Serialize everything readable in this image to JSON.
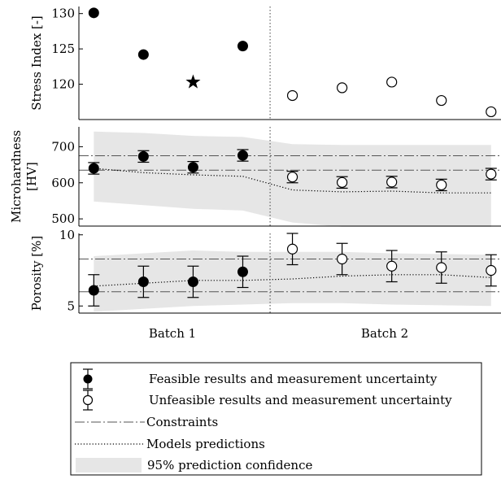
{
  "chart_data": [
    {
      "type": "scatter",
      "ylabel": "Stress Index [-]",
      "yticks": [
        120,
        125,
        130
      ],
      "ylim": [
        115,
        131
      ],
      "series": [
        {
          "group": "feasible",
          "marker": "filled-circle",
          "x": [
            1,
            2,
            4
          ],
          "y": [
            130.1,
            124.2,
            125.4
          ]
        },
        {
          "group": "star",
          "marker": "star",
          "x": [
            3
          ],
          "y": [
            120.3
          ]
        },
        {
          "group": "unfeasible",
          "marker": "open-circle",
          "x": [
            5,
            6,
            7,
            8,
            9
          ],
          "y": [
            118.4,
            119.5,
            120.3,
            117.7,
            116.1
          ]
        }
      ]
    },
    {
      "type": "scatter",
      "ylabel": "Microhardness [HV]",
      "yticks": [
        500,
        600,
        700
      ],
      "ylim": [
        480,
        755
      ],
      "constraints": [
        635,
        675
      ],
      "band": {
        "x": [
          1,
          2,
          3,
          4,
          5,
          6,
          7,
          8,
          9
        ],
        "lower": [
          548,
          538,
          528,
          523,
          490,
          478,
          478,
          478,
          478
        ],
        "upper": [
          742,
          738,
          730,
          727,
          707,
          705,
          705,
          705,
          705
        ]
      },
      "model": {
        "x": [
          1,
          2,
          3,
          4,
          5,
          6,
          7,
          8,
          9
        ],
        "y": [
          640,
          628,
          622,
          618,
          580,
          575,
          577,
          572,
          572
        ]
      },
      "series": [
        {
          "group": "feasible",
          "x": [
            1,
            2,
            3,
            4
          ],
          "y": [
            640,
            673,
            643,
            676
          ],
          "err": [
            16,
            16,
            16,
            16
          ]
        },
        {
          "group": "unfeasible",
          "x": [
            5,
            6,
            7,
            8,
            9
          ],
          "y": [
            616,
            601,
            602,
            594,
            624
          ],
          "err": [
            16,
            16,
            16,
            16,
            16
          ]
        }
      ]
    },
    {
      "type": "scatter",
      "ylabel": "Porosity [%]",
      "yticks": [
        5,
        10
      ],
      "ylim": [
        4.5,
        10.1
      ],
      "constraints": [
        6.0,
        8.3
      ],
      "band": {
        "x": [
          1,
          2,
          3,
          4,
          5,
          6,
          7,
          8,
          9
        ],
        "lower": [
          4.6,
          4.8,
          5.0,
          5.1,
          5.2,
          5.2,
          5.1,
          5.05,
          5.0
        ],
        "upper": [
          8.5,
          8.7,
          8.9,
          8.8,
          8.8,
          8.8,
          8.7,
          8.65,
          8.6
        ]
      },
      "model": {
        "x": [
          1,
          2,
          3,
          4,
          5,
          6,
          7,
          8,
          9
        ],
        "y": [
          6.4,
          6.6,
          6.8,
          6.8,
          6.9,
          7.1,
          7.2,
          7.2,
          7.0
        ]
      },
      "series": [
        {
          "group": "feasible",
          "x": [
            1,
            2,
            3,
            4
          ],
          "y": [
            6.1,
            6.7,
            6.7,
            7.4
          ],
          "err": [
            1.1,
            1.1,
            1.1,
            1.1
          ]
        },
        {
          "group": "unfeasible",
          "x": [
            5,
            6,
            7,
            8,
            9
          ],
          "y": [
            9.0,
            8.3,
            7.8,
            7.7,
            7.5
          ],
          "err": [
            1.1,
            1.1,
            1.1,
            1.1,
            1.1
          ]
        }
      ]
    }
  ],
  "xaxis": {
    "categories": [
      "Batch 1",
      "Batch 2"
    ],
    "separator_x": 4.55,
    "xlim": [
      0.7,
      9.2
    ]
  },
  "legend": {
    "items": [
      {
        "key": "feasible",
        "label": "Feasible results and measurement uncertainty"
      },
      {
        "key": "unfeasible",
        "label": "Unfeasible results and measurement uncertainty"
      },
      {
        "key": "constraints",
        "label": "Constraints"
      },
      {
        "key": "model",
        "label": "Models predictions"
      },
      {
        "key": "band",
        "label": "95% prediction confidence"
      }
    ]
  },
  "colors": {
    "band": "#e6e6e6",
    "line": "#000000",
    "constraint": "#555555"
  }
}
